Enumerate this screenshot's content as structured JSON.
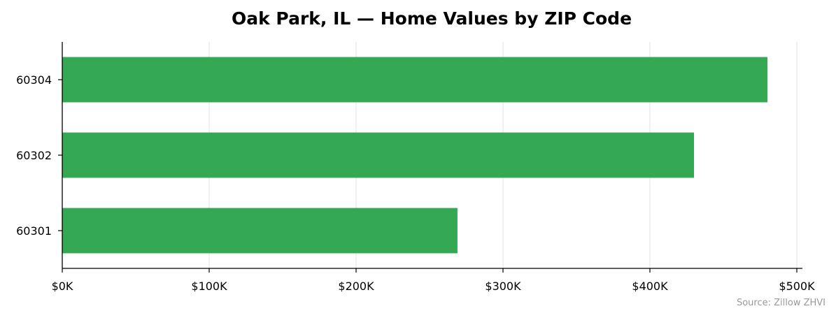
{
  "chart_data": {
    "type": "bar",
    "orientation": "horizontal",
    "title": "Oak Park, IL — Home Values by ZIP Code",
    "categories": [
      "60304",
      "60302",
      "60301"
    ],
    "values": [
      480000,
      430000,
      269000
    ],
    "xlim": [
      0,
      500000
    ],
    "x_ticks": [
      0,
      100000,
      200000,
      300000,
      400000,
      500000
    ],
    "x_tick_labels": [
      "$0K",
      "$100K",
      "$200K",
      "$300K",
      "$400K",
      "$500K"
    ],
    "xlabel": "",
    "ylabel": "",
    "grid": "vertical",
    "bar_color": "#34a853",
    "source": "Source: Zillow ZHVI"
  }
}
